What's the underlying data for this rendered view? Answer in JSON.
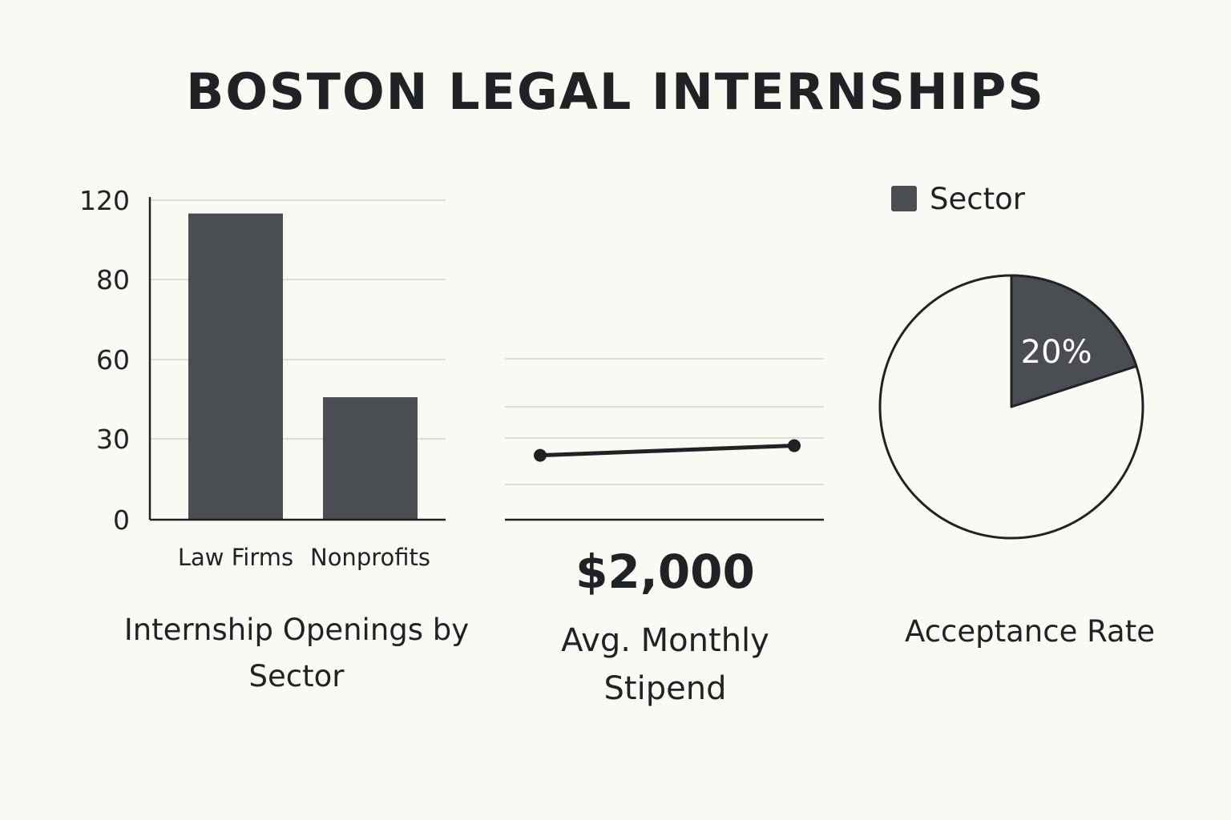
{
  "title": "BOSTON LEGAL INTERNSHIPS",
  "colors": {
    "background": "#fbf9f4",
    "dark": "#4a4e52",
    "ink": "#1f2326",
    "grid": "#d2d2d0"
  },
  "chart_data": [
    {
      "type": "bar",
      "title": "Internship Openings by Sector",
      "categories": [
        "Law Firms",
        "Nonprofits"
      ],
      "values": [
        115,
        46
      ],
      "y_ticks": [
        "0",
        "30",
        "60",
        "80",
        "120"
      ],
      "ylim": [
        0,
        120
      ],
      "grid": true,
      "color": "#4a4e52"
    },
    {
      "type": "line",
      "title": "Avg. Monthly Stipend",
      "value_label": "$2,000",
      "series": [
        {
          "values": [
            2000,
            2030
          ]
        }
      ],
      "grid": true,
      "color": "#1f2326"
    },
    {
      "type": "pie",
      "title": "Acceptance Rate",
      "legend": {
        "label": "Sector",
        "position": "top"
      },
      "slices": [
        {
          "value": 20,
          "label": "20%",
          "color": "#4a4e52"
        },
        {
          "value": 80,
          "label": "",
          "color": "#fbf9f4"
        }
      ]
    }
  ]
}
